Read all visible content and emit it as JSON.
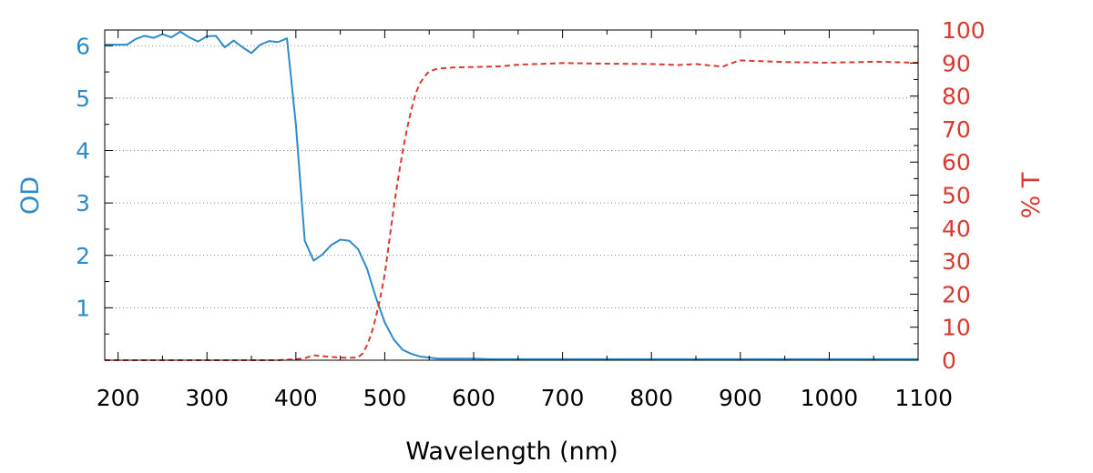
{
  "chart_data": {
    "type": "line",
    "xlabel": "Wavelength (nm)",
    "ylabel_left": "OD",
    "ylabel_right": "% T",
    "xlim": [
      185,
      1100
    ],
    "ylim_left": [
      0,
      6.3
    ],
    "ylim_right": [
      0,
      100
    ],
    "x_ticks": [
      "200",
      "300",
      "400",
      "500",
      "600",
      "700",
      "800",
      "900",
      "1000",
      "1100"
    ],
    "y_left_ticks": [
      "1",
      "2",
      "3",
      "4",
      "5",
      "6"
    ],
    "y_right_ticks": [
      "0",
      "10",
      "20",
      "30",
      "40",
      "50",
      "60",
      "70",
      "80",
      "90",
      "100"
    ],
    "grid": "horizontal-dotted",
    "colors": {
      "od": "#2e8bc9",
      "transmission": "#d93a30"
    },
    "series": [
      {
        "axis": "left",
        "style": "solid",
        "x": [
          185,
          200,
          210,
          220,
          230,
          240,
          250,
          260,
          270,
          280,
          290,
          300,
          310,
          320,
          330,
          340,
          350,
          360,
          370,
          380,
          390,
          400,
          410,
          420,
          430,
          440,
          450,
          460,
          470,
          480,
          490,
          500,
          510,
          520,
          530,
          540,
          550,
          560,
          580,
          600,
          620,
          650,
          700,
          750,
          800,
          850,
          880,
          900,
          950,
          1000,
          1050,
          1100
        ],
        "values": [
          6.02,
          6.02,
          6.02,
          6.13,
          6.19,
          6.15,
          6.22,
          6.16,
          6.27,
          6.16,
          6.08,
          6.18,
          6.19,
          5.97,
          6.1,
          5.97,
          5.86,
          6.02,
          6.09,
          6.07,
          6.14,
          4.5,
          2.28,
          1.9,
          2.02,
          2.2,
          2.3,
          2.28,
          2.12,
          1.75,
          1.2,
          0.72,
          0.4,
          0.2,
          0.12,
          0.07,
          0.05,
          0.03,
          0.03,
          0.03,
          0.02,
          0.02,
          0.02,
          0.02,
          0.02,
          0.02,
          0.02,
          0.02,
          0.02,
          0.02,
          0.02,
          0.02
        ]
      },
      {
        "axis": "right",
        "style": "dashed",
        "x": [
          185,
          300,
          380,
          400,
          410,
          420,
          430,
          440,
          450,
          460,
          470,
          475,
          480,
          485,
          490,
          495,
          500,
          505,
          510,
          515,
          520,
          525,
          530,
          535,
          540,
          545,
          550,
          560,
          570,
          580,
          600,
          630,
          650,
          700,
          750,
          800,
          830,
          850,
          880,
          895,
          900,
          950,
          1000,
          1050,
          1100
        ],
        "values": [
          0,
          0,
          0,
          0.3,
          0.6,
          1.5,
          1.2,
          1,
          0.8,
          0.7,
          0.9,
          2,
          4.5,
          8,
          13,
          19,
          26,
          36,
          46,
          55,
          63,
          70,
          76,
          81,
          84,
          86,
          87.5,
          88.3,
          88.5,
          88.7,
          88.8,
          89,
          89.5,
          90,
          89.8,
          89.7,
          89.4,
          89.7,
          88.9,
          90.4,
          90.8,
          90.3,
          90.1,
          90.4,
          90.1
        ]
      }
    ]
  }
}
